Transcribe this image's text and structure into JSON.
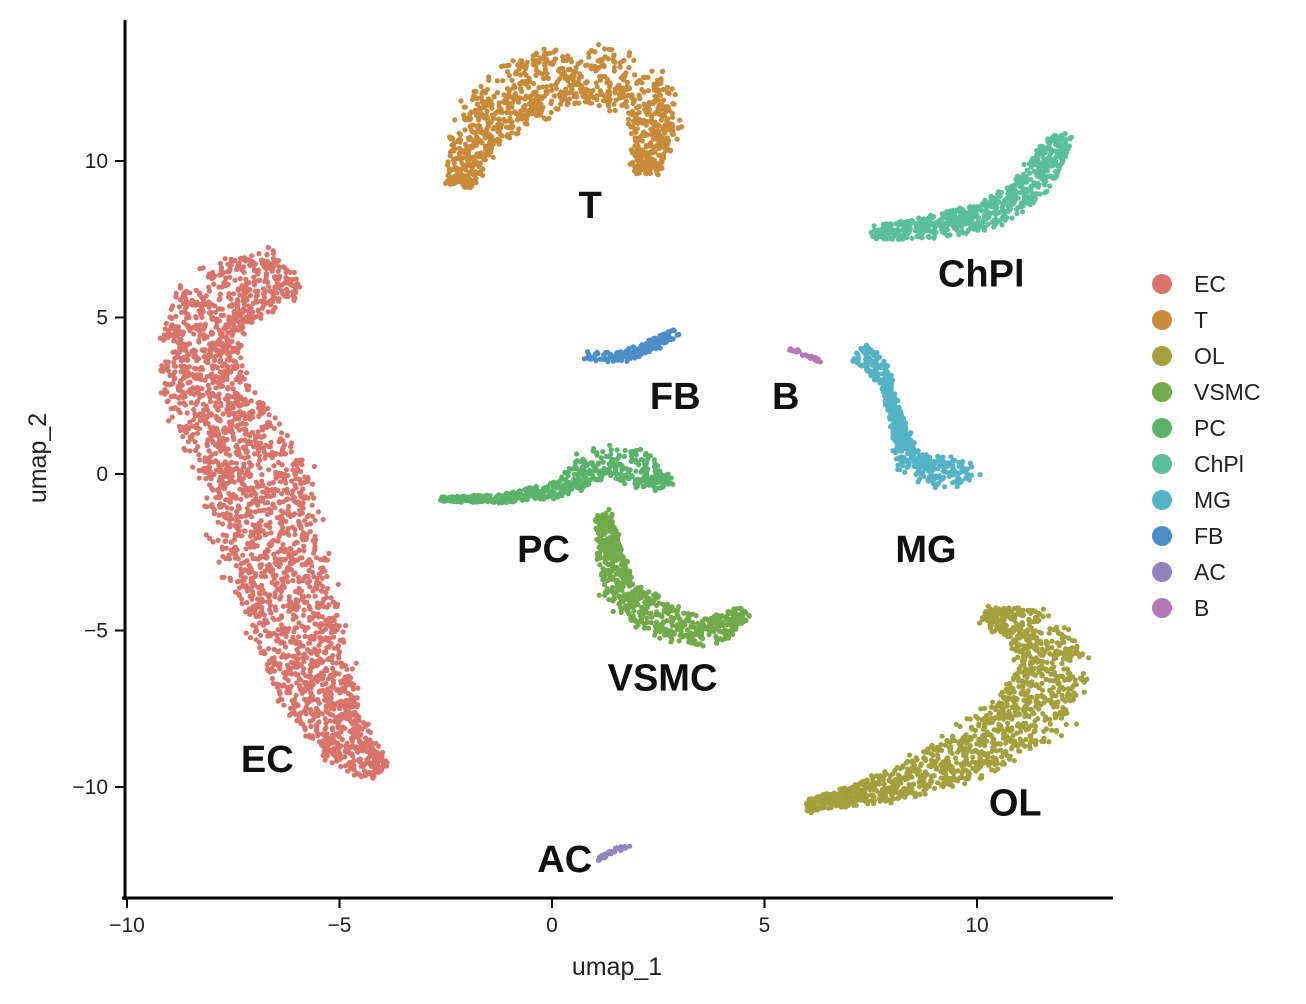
{
  "chart_data": {
    "type": "scatter",
    "title": "",
    "xlabel": "umap_1",
    "ylabel": "umap_2",
    "xlim": [
      -10,
      13.2
    ],
    "ylim": [
      -13.5,
      14.5
    ],
    "x_ticks": [
      -10,
      -5,
      0,
      5,
      10
    ],
    "y_ticks": [
      -10,
      -5,
      0,
      5,
      10
    ],
    "x_tick_labels": [
      "−10",
      "−5",
      "0",
      "5",
      "10"
    ],
    "y_tick_labels": [
      "−10",
      "−5",
      "0",
      "5",
      "10"
    ],
    "grid": false,
    "legend_position": "right",
    "series": [
      {
        "name": "EC",
        "color": "#D9746B",
        "spine": [
          [
            -6.2,
            6.5
          ],
          [
            -7.8,
            5.6
          ],
          [
            -8.4,
            4.0
          ],
          [
            -7.9,
            2.0
          ],
          [
            -7.0,
            0.3
          ],
          [
            -6.8,
            -1.5
          ],
          [
            -6.3,
            -3.5
          ],
          [
            -5.9,
            -5.5
          ],
          [
            -5.4,
            -7.5
          ],
          [
            -4.6,
            -9.0
          ],
          [
            -4.0,
            -9.5
          ]
        ],
        "width": [
          1.6,
          2.0,
          1.7,
          2.1,
          2.3,
          2.4,
          2.2,
          2.0,
          1.6,
          1.2,
          0.6
        ],
        "n": 2600,
        "label": "EC",
        "label_pos": [
          -6.7,
          -9.1
        ]
      },
      {
        "name": "T",
        "color": "#C88B3A",
        "spine": [
          [
            -2.2,
            9.2
          ],
          [
            -1.8,
            10.8
          ],
          [
            -0.8,
            12.2
          ],
          [
            0.6,
            12.9
          ],
          [
            1.8,
            12.5
          ],
          [
            2.5,
            11.4
          ],
          [
            2.2,
            9.6
          ]
        ],
        "width": [
          0.6,
          1.2,
          1.8,
          1.9,
          1.6,
          1.2,
          0.6
        ],
        "n": 1100,
        "label": "T",
        "label_pos": [
          0.9,
          8.6
        ]
      },
      {
        "name": "OL",
        "color": "#A3A13D",
        "spine": [
          [
            6.0,
            -10.6
          ],
          [
            8.0,
            -10.0
          ],
          [
            9.8,
            -9.0
          ],
          [
            11.3,
            -7.6
          ],
          [
            11.8,
            -6.2
          ],
          [
            11.4,
            -5.0
          ],
          [
            10.2,
            -4.5
          ]
        ],
        "width": [
          0.4,
          0.9,
          1.5,
          1.8,
          1.6,
          1.4,
          0.5
        ],
        "n": 1300,
        "label": "OL",
        "label_pos": [
          10.9,
          -10.5
        ]
      },
      {
        "name": "VSMC",
        "color": "#72AA4A",
        "spine": [
          [
            1.2,
            -1.3
          ],
          [
            1.4,
            -2.8
          ],
          [
            1.7,
            -4.0
          ],
          [
            2.6,
            -4.6
          ],
          [
            3.7,
            -5.1
          ],
          [
            4.5,
            -4.4
          ]
        ],
        "width": [
          0.4,
          0.6,
          0.9,
          1.1,
          0.9,
          0.4
        ],
        "n": 650,
        "label": "VSMC",
        "label_pos": [
          2.6,
          -6.5
        ]
      },
      {
        "name": "PC",
        "color": "#5BB36B",
        "spine": [
          [
            -2.6,
            -0.8
          ],
          [
            -1.3,
            -0.8
          ],
          [
            0.2,
            -0.5
          ],
          [
            1.0,
            0.3
          ],
          [
            1.6,
            0.4
          ],
          [
            2.3,
            0.0
          ],
          [
            2.7,
            -0.4
          ]
        ],
        "width": [
          0.15,
          0.25,
          0.5,
          1.0,
          1.1,
          0.9,
          0.4
        ],
        "n": 600,
        "label": "PC",
        "label_pos": [
          -0.2,
          -2.4
        ]
      },
      {
        "name": "ChPl",
        "color": "#5BBF9E",
        "spine": [
          [
            7.6,
            7.7
          ],
          [
            9.0,
            7.9
          ],
          [
            10.3,
            8.3
          ],
          [
            11.3,
            9.2
          ],
          [
            11.8,
            10.3
          ],
          [
            12.0,
            10.8
          ]
        ],
        "width": [
          0.4,
          0.7,
          0.8,
          0.8,
          0.7,
          0.4
        ],
        "n": 700,
        "label": "ChPl",
        "label_pos": [
          10.1,
          6.4
        ]
      },
      {
        "name": "MG",
        "color": "#54B3C5",
        "spine": [
          [
            7.2,
            3.9
          ],
          [
            7.6,
            3.5
          ],
          [
            7.9,
            2.8
          ],
          [
            8.1,
            1.8
          ],
          [
            8.3,
            0.8
          ],
          [
            8.6,
            0.2
          ],
          [
            9.3,
            0.0
          ],
          [
            9.9,
            0.2
          ]
        ],
        "width": [
          0.6,
          0.6,
          0.3,
          0.3,
          0.5,
          0.9,
          1.0,
          0.6
        ],
        "n": 520,
        "label": "MG",
        "label_pos": [
          8.8,
          -2.4
        ]
      },
      {
        "name": "FB",
        "color": "#4D8EC9",
        "spine": [
          [
            0.8,
            3.8
          ],
          [
            1.6,
            3.7
          ],
          [
            2.3,
            4.1
          ],
          [
            2.9,
            4.5
          ]
        ],
        "width": [
          0.3,
          0.35,
          0.35,
          0.25
        ],
        "n": 150,
        "label": "FB",
        "label_pos": [
          2.9,
          2.5
        ]
      },
      {
        "name": "AC",
        "color": "#8F82BD",
        "spine": [
          [
            1.1,
            -12.3
          ],
          [
            1.5,
            -12.0
          ],
          [
            1.9,
            -11.9
          ]
        ],
        "width": [
          0.1,
          0.12,
          0.1
        ],
        "n": 30,
        "label": "AC",
        "label_pos": [
          0.3,
          -12.3
        ]
      },
      {
        "name": "B",
        "color": "#B577B5",
        "spine": [
          [
            5.6,
            4.0
          ],
          [
            6.0,
            3.8
          ],
          [
            6.3,
            3.6
          ]
        ],
        "width": [
          0.1,
          0.1,
          0.08
        ],
        "n": 25,
        "label": "B",
        "label_pos": [
          5.5,
          2.5
        ]
      }
    ]
  }
}
